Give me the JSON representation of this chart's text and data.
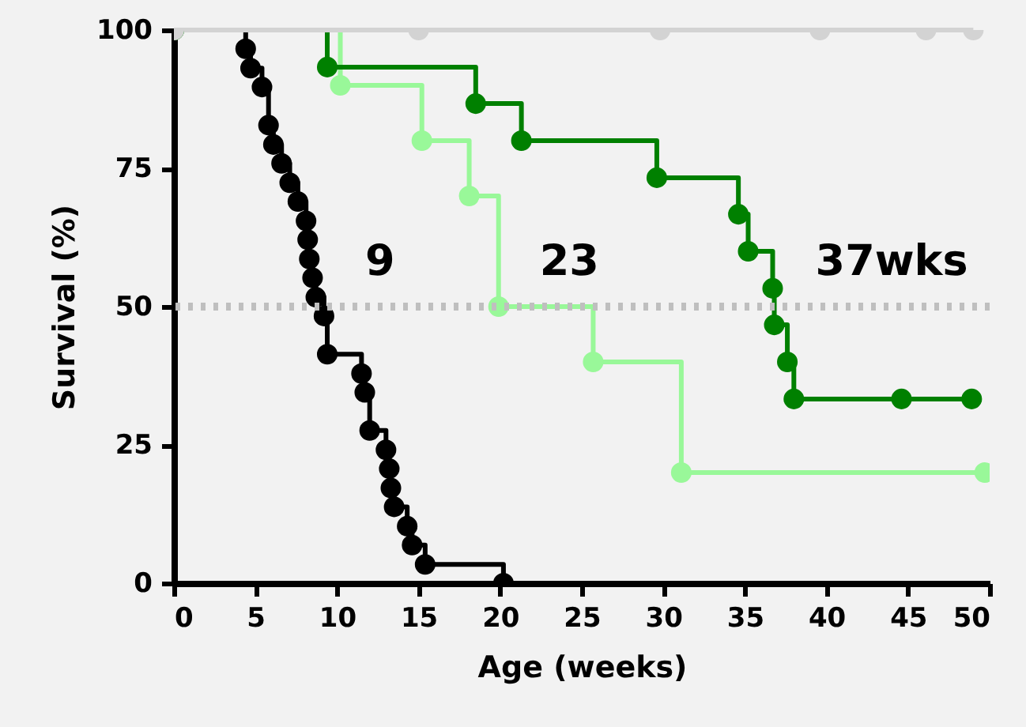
{
  "chart_data": {
    "type": "step",
    "xlabel": "Age (weeks)",
    "ylabel": "Survival (%)",
    "xlim": [
      0,
      50
    ],
    "xticks": [
      0,
      5,
      10,
      15,
      20,
      25,
      30,
      35,
      40,
      45,
      50
    ],
    "ylim": [
      0,
      100
    ],
    "yticks": [
      0,
      25,
      50,
      75,
      100
    ],
    "grid": false,
    "marker": "circle",
    "line_style": "solid",
    "series": [
      {
        "color": "#000000",
        "x": [
          0,
          4.4,
          4.7,
          5.4,
          5.8,
          6.1,
          6.6,
          7.1,
          7.6,
          8.1,
          8.2,
          8.3,
          8.5,
          8.7,
          9.2,
          9.4,
          11.5,
          11.7,
          12,
          13,
          13.2,
          13.3,
          13.5,
          14.3,
          14.6,
          15.4,
          20.2
        ],
        "values": [
          100,
          96.6,
          93.1,
          89.7,
          82.8,
          79.3,
          75.9,
          72.4,
          69,
          65.5,
          62.1,
          58.6,
          55.2,
          51.7,
          48.3,
          41.4,
          37.9,
          34.5,
          27.6,
          24.1,
          20.7,
          17.2,
          13.8,
          10.3,
          6.9,
          3.4,
          0
        ]
      },
      {
        "color": "#99f899",
        "x": [
          0,
          10.2,
          15.2,
          18.1,
          19.9,
          25.7,
          31.1,
          49.7
        ],
        "values": [
          100,
          90,
          80,
          70,
          50,
          40,
          20,
          20
        ]
      },
      {
        "color": "#008000",
        "x": [
          0,
          9.4,
          18.5,
          21.3,
          29.6,
          34.6,
          35.2,
          36.7,
          36.8,
          37.6,
          38,
          44.6,
          48.9
        ],
        "values": [
          100,
          93.3,
          86.7,
          80,
          73.3,
          66.7,
          60,
          53.3,
          46.7,
          40,
          33.3,
          33.3,
          33.3
        ]
      },
      {
        "color": "#d3d3d3",
        "x": [
          0,
          15,
          29.8,
          39.6,
          46.1,
          49
        ],
        "values": [
          100,
          100,
          100,
          100,
          100,
          100
        ]
      }
    ],
    "ref_lines": [
      {
        "axis": "y",
        "value": 50,
        "color": "#bfbfbf",
        "line_style": "dotted"
      }
    ],
    "annotations": [
      "9",
      "23",
      "37wks"
    ]
  }
}
